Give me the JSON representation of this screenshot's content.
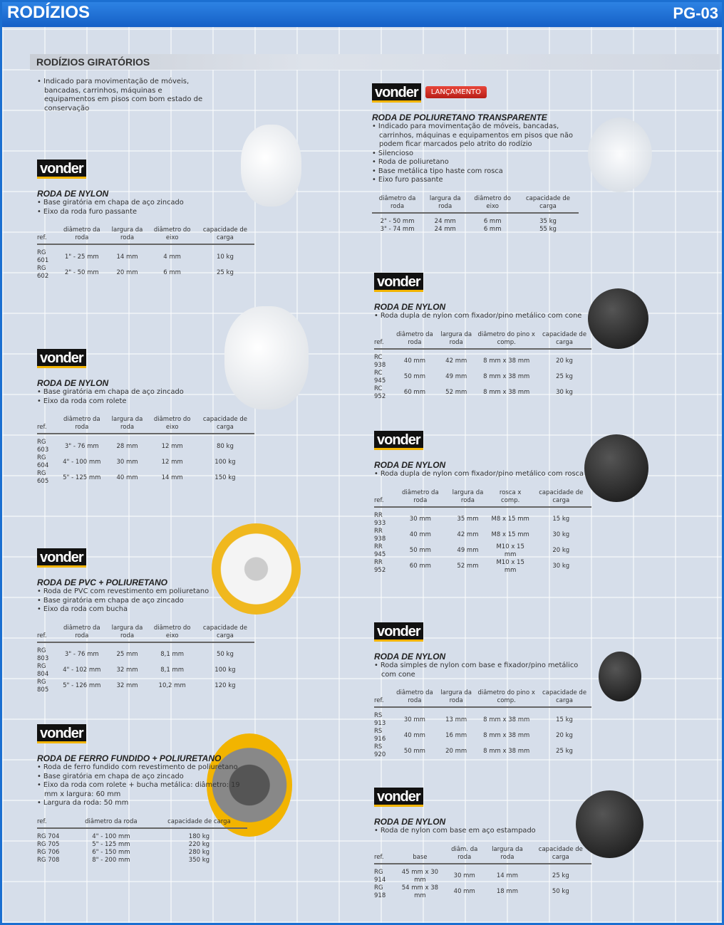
{
  "header": {
    "title": "RODÍZIOS",
    "page": "PG-03"
  },
  "section": {
    "title": "RODÍZIOS GIRATÓRIOS",
    "intro": "Indicado para movimentação de móveis, bancadas, carrinhos, máquinas e equipamentos em pisos com bom estado de conservação"
  },
  "brand": "vonder",
  "badge": "LANÇAMENTO",
  "colors": {
    "header": "#1b6fd1",
    "yellow": "#f2b400"
  },
  "products": [
    {
      "title": "RODA DE NYLON",
      "bullets": [
        "Base giratória em chapa de aço zincado",
        "Eixo da roda furo passante"
      ],
      "headers": [
        "ref.",
        "diâmetro da roda",
        "largura da roda",
        "diâmetro do eixo",
        "capacidade de carga"
      ],
      "rows": [
        [
          "RG 601",
          "1\" - 25 mm",
          "14 mm",
          "4 mm",
          "10 kg"
        ],
        [
          "RG 602",
          "2\" - 50 mm",
          "20 mm",
          "6 mm",
          "25 kg"
        ]
      ]
    },
    {
      "title": "RODA DE NYLON",
      "bullets": [
        "Base giratória em chapa de aço zincado",
        "Eixo da roda com rolete"
      ],
      "headers": [
        "ref.",
        "diâmetro da roda",
        "largura da roda",
        "diâmetro do eixo",
        "capacidade de carga"
      ],
      "rows": [
        [
          "RG 603",
          "3\" - 76 mm",
          "28 mm",
          "12 mm",
          "80 kg"
        ],
        [
          "RG 604",
          "4\" - 100 mm",
          "30 mm",
          "12 mm",
          "100 kg"
        ],
        [
          "RG 605",
          "5\" - 125 mm",
          "40 mm",
          "14 mm",
          "150 kg"
        ]
      ]
    },
    {
      "title": "RODA DE PVC + POLIURETANO",
      "bullets": [
        "Roda de PVC com revestimento em poliuretano",
        "Base giratória em chapa de aço zincado",
        "Eixo da roda com bucha"
      ],
      "headers": [
        "ref.",
        "diâmetro da roda",
        "largura da roda",
        "diâmetro do eixo",
        "capacidade de carga"
      ],
      "rows": [
        [
          "RG 803",
          "3\" - 76 mm",
          "25 mm",
          "8,1 mm",
          "50 kg"
        ],
        [
          "RG 804",
          "4\" - 102 mm",
          "32 mm",
          "8,1 mm",
          "100 kg"
        ],
        [
          "RG 805",
          "5\" - 126 mm",
          "32 mm",
          "10,2 mm",
          "120 kg"
        ]
      ]
    },
    {
      "title": "RODA DE FERRO FUNDIDO + POLIURETANO",
      "bullets": [
        "Roda de ferro fundido com revestimento de poliuretano",
        "Base giratória em chapa de aço zincado",
        "Eixo da roda com rolete + bucha metálica: diâmetro: 19 mm x largura: 60 mm",
        "Largura da roda: 50 mm"
      ],
      "headers": [
        "ref.",
        "diâmetro da roda",
        "capacidade de carga"
      ],
      "rows": [
        [
          "RG 704",
          "4\" - 100 mm",
          "180 kg"
        ],
        [
          "RG 705",
          "5\" - 125 mm",
          "220 kg"
        ],
        [
          "RG 706",
          "6\" - 150 mm",
          "280 kg"
        ],
        [
          "RG 708",
          "8\" - 200 mm",
          "350 kg"
        ]
      ]
    },
    {
      "title": "RODA DE POLIURETANO TRANSPARENTE",
      "bullets": [
        "Indicado para movimentação de móveis, bancadas, carrinhos, máquinas e equipamentos em pisos que não podem ficar marcados pelo atrito do rodízio",
        "Silencioso",
        "Roda de poliuretano",
        "Base metálica tipo haste com rosca",
        "Eixo furo passante"
      ],
      "headers": [
        "diâmetro da roda",
        "largura da roda",
        "diâmetro do eixo",
        "capacidade de carga"
      ],
      "rows": [
        [
          "2\" - 50 mm",
          "24 mm",
          "6 mm",
          "35 kg"
        ],
        [
          "3\" - 74 mm",
          "24 mm",
          "6 mm",
          "55 kg"
        ]
      ]
    },
    {
      "title": "RODA DE NYLON",
      "bullets": [
        "Roda dupla de nylon com fixador/pino metálico com cone"
      ],
      "headers": [
        "ref.",
        "diâmetro da roda",
        "largura da roda",
        "diâmetro do pino x comp.",
        "capacidade de carga"
      ],
      "rows": [
        [
          "RC 938",
          "40 mm",
          "42 mm",
          "8 mm x 38 mm",
          "20 kg"
        ],
        [
          "RC 945",
          "50 mm",
          "49 mm",
          "8 mm x 38 mm",
          "25 kg"
        ],
        [
          "RC 952",
          "60 mm",
          "52 mm",
          "8 mm x 38 mm",
          "30 kg"
        ]
      ]
    },
    {
      "title": "RODA DE NYLON",
      "bullets": [
        "Roda dupla de nylon com fixador/pino metálico com rosca"
      ],
      "headers": [
        "ref.",
        "diâmetro da roda",
        "largura da roda",
        "rosca x comp.",
        "capacidade de carga"
      ],
      "rows": [
        [
          "RR 933",
          "30 mm",
          "35 mm",
          "M8 x 15 mm",
          "15 kg"
        ],
        [
          "RR 938",
          "40 mm",
          "42 mm",
          "M8 x 15 mm",
          "30 kg"
        ],
        [
          "RR 945",
          "50 mm",
          "49 mm",
          "M10 x 15 mm",
          "20 kg"
        ],
        [
          "RR 952",
          "60 mm",
          "52 mm",
          "M10 x 15 mm",
          "30 kg"
        ]
      ]
    },
    {
      "title": "RODA DE NYLON",
      "bullets": [
        "Roda simples de nylon com base e fixador/pino metálico com cone"
      ],
      "headers": [
        "ref.",
        "diâmetro da roda",
        "largura da roda",
        "diâmetro do pino x comp.",
        "capacidade de carga"
      ],
      "rows": [
        [
          "RS 913",
          "30 mm",
          "13 mm",
          "8 mm x 38 mm",
          "15 kg"
        ],
        [
          "RS 916",
          "40 mm",
          "16 mm",
          "8 mm x 38 mm",
          "20 kg"
        ],
        [
          "RS 920",
          "50 mm",
          "20 mm",
          "8 mm x 38 mm",
          "25 kg"
        ]
      ]
    },
    {
      "title": "RODA DE NYLON",
      "bullets": [
        "Roda de nylon com base em aço estampado"
      ],
      "headers": [
        "ref.",
        "base",
        "diâm. da roda",
        "largura da roda",
        "capacidade de carga"
      ],
      "rows": [
        [
          "RG 914",
          "45 mm x 30 mm",
          "30 mm",
          "14 mm",
          "25 kg"
        ],
        [
          "RG 918",
          "54 mm x 38 mm",
          "40 mm",
          "18 mm",
          "50 kg"
        ]
      ]
    }
  ]
}
